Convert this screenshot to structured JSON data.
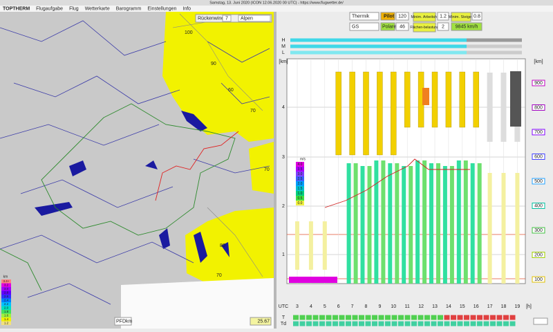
{
  "window_title": "Samstag, 13. Juni 2020 (ICON 12.06.2020 00 UTC) - https://www.flugwetter.de/",
  "menu": [
    "TOPTHERM",
    "Flugaufgabe",
    "Flug",
    "Wetterkarte",
    "Barogramm",
    "Einstellungen",
    "Info"
  ],
  "map": {
    "wind_label": "Rückenwind",
    "wind_value": "7",
    "region": "Alpen",
    "contour_labels": [
      "100",
      "90",
      "60",
      "70",
      "70",
      "80",
      "70"
    ],
    "legend_title": "km",
    "legend": [
      "3.4+",
      "3.2",
      "3.0",
      "2.8",
      "2.6",
      "2.4",
      "2.2",
      "2.0",
      "1.8",
      "1.6",
      "1.4",
      "1.2"
    ],
    "pfd": "PFD",
    "pfd_unit": "km",
    "distance": "25.67"
  },
  "panel": {
    "thermik": "Thermik",
    "pilot_label": "Pilot",
    "pilot": "120",
    "min_arbeit_label": "Minim. Arbeitsh.",
    "min_arbeit": "1.2",
    "min_steigen_label": "Minim. Steigen",
    "min_steigen": "0.8",
    "glider": "GS",
    "polare_label": "Polare",
    "polare": "46",
    "flaechen_label": "Flächen-belastung",
    "flaechen": "2",
    "speed": "9845 km/h"
  },
  "meteogram": {
    "cloud_rows": [
      "H",
      "M",
      "L"
    ],
    "km_label": "[km]",
    "km_ticks": [
      "4",
      "3",
      "2",
      "1"
    ],
    "right_label": "[km]",
    "right_ticks": [
      "900",
      "800",
      "700",
      "600",
      "500",
      "400",
      "300",
      "200",
      "100"
    ],
    "ms_title": "m/s",
    "ms_legend": [
      "4.0",
      "3.5",
      "3.0",
      "2.5",
      "2.0",
      "1.5",
      "1.0",
      "0.5",
      "0.0"
    ],
    "time_label": "UTC",
    "hours": [
      "3",
      "4",
      "5",
      "6",
      "7",
      "8",
      "9",
      "10",
      "11",
      "12",
      "13",
      "14",
      "15",
      "16",
      "17",
      "18",
      "19"
    ],
    "hour_unit": "[h]",
    "row_labels": [
      "T",
      "Td"
    ]
  }
}
